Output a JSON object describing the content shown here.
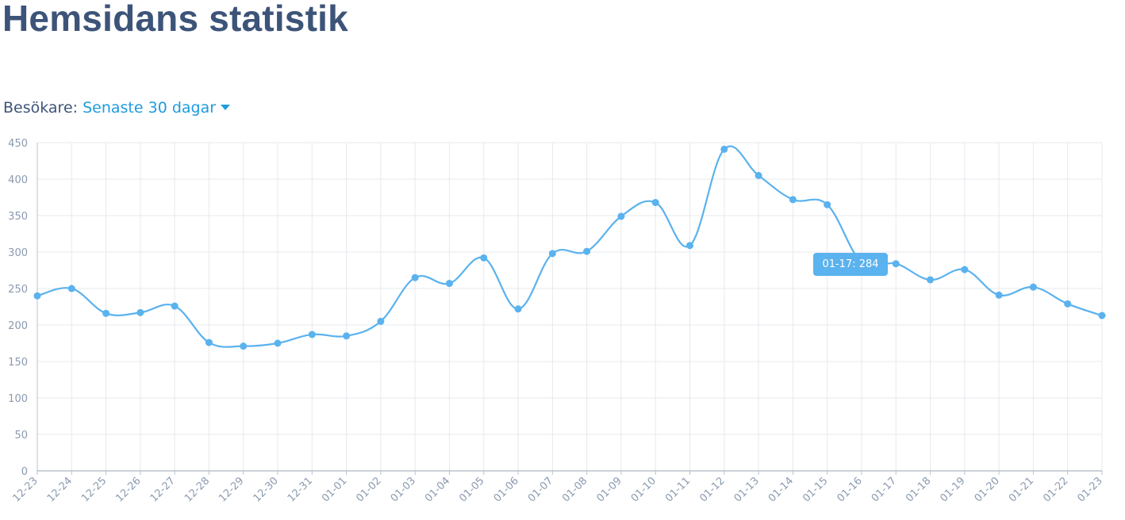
{
  "page": {
    "title": "Hemsidans statistik"
  },
  "filter": {
    "label": "Besökare:",
    "selected": "Senaste 30 dagar"
  },
  "tooltip": {
    "text": "01-17: 284"
  },
  "colors": {
    "title": "#3d5479",
    "accent": "#1e9be0",
    "line": "#5ab2ee",
    "grid": "#e6e9ee",
    "tick": "#8a9ab0"
  },
  "chart_data": {
    "type": "line",
    "title": "",
    "xlabel": "",
    "ylabel": "",
    "categories": [
      "12-23",
      "12-24",
      "12-25",
      "12-26",
      "12-27",
      "12-28",
      "12-29",
      "12-30",
      "12-31",
      "01-01",
      "01-02",
      "01-03",
      "01-04",
      "01-05",
      "01-06",
      "01-07",
      "01-08",
      "01-09",
      "01-10",
      "01-11",
      "01-12",
      "01-13",
      "01-14",
      "01-15",
      "01-16",
      "01-17",
      "01-18",
      "01-19",
      "01-20",
      "01-21",
      "01-22",
      "01-23"
    ],
    "series": [
      {
        "values": [
          240,
          250,
          216,
          217,
          226,
          176,
          171,
          175,
          187,
          185,
          205,
          265,
          257,
          292,
          222,
          298,
          301,
          349,
          368,
          309,
          441,
          405,
          372,
          365,
          286,
          284,
          262,
          276,
          241,
          252,
          229,
          213
        ]
      }
    ],
    "ylim": [
      0,
      450
    ],
    "yticks": [
      0,
      50,
      100,
      150,
      200,
      250,
      300,
      350,
      400,
      450
    ],
    "grid": true,
    "legend": "none",
    "highlight_index": 25
  }
}
